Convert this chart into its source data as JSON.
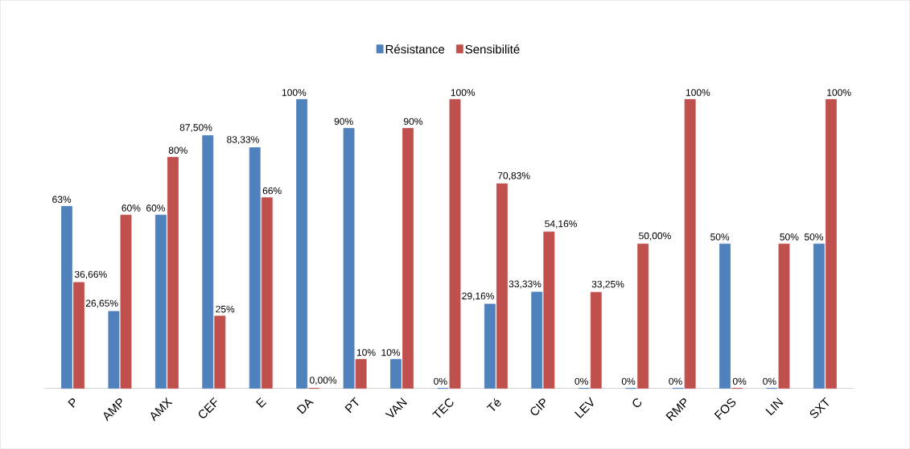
{
  "chart_data": {
    "type": "bar",
    "categories": [
      "P",
      "AMP",
      "AMX",
      "CEF",
      "E",
      "DA",
      "PT",
      "VAN",
      "TEC",
      "Té",
      "CIP",
      "LEV",
      "C",
      "RMP",
      "FOS",
      "LIN",
      "SXT"
    ],
    "series": [
      {
        "name": "Résistance",
        "color": "#4f81bd",
        "values": [
          63,
          26.65,
          60,
          87.5,
          83.33,
          100,
          90,
          10,
          0,
          29.16,
          33.33,
          0,
          0,
          0,
          50,
          0,
          50
        ],
        "value_labels": [
          "63%",
          "26,65%",
          "60%",
          "87,50%",
          "83,33%",
          "100%",
          "90%",
          "10%",
          "0%",
          "29,16%",
          "33,33%",
          "0%",
          "0%",
          "0%",
          "50%",
          "0%",
          "50%"
        ]
      },
      {
        "name": "Sensibilité",
        "color": "#c0504d",
        "values": [
          36.66,
          60,
          80,
          25,
          66,
          0,
          10,
          90,
          100,
          70.83,
          54.16,
          33.25,
          50,
          100,
          0,
          50,
          100
        ],
        "value_labels": [
          "36,66%",
          "60%",
          "80%",
          "25%",
          "66%",
          "0,00%",
          "10%",
          "90%",
          "100%",
          "70,83%",
          "54,16%",
          "33,25%",
          "50,00%",
          "100%",
          "0%",
          "50%",
          "100%"
        ]
      }
    ],
    "legend": "top"
  }
}
